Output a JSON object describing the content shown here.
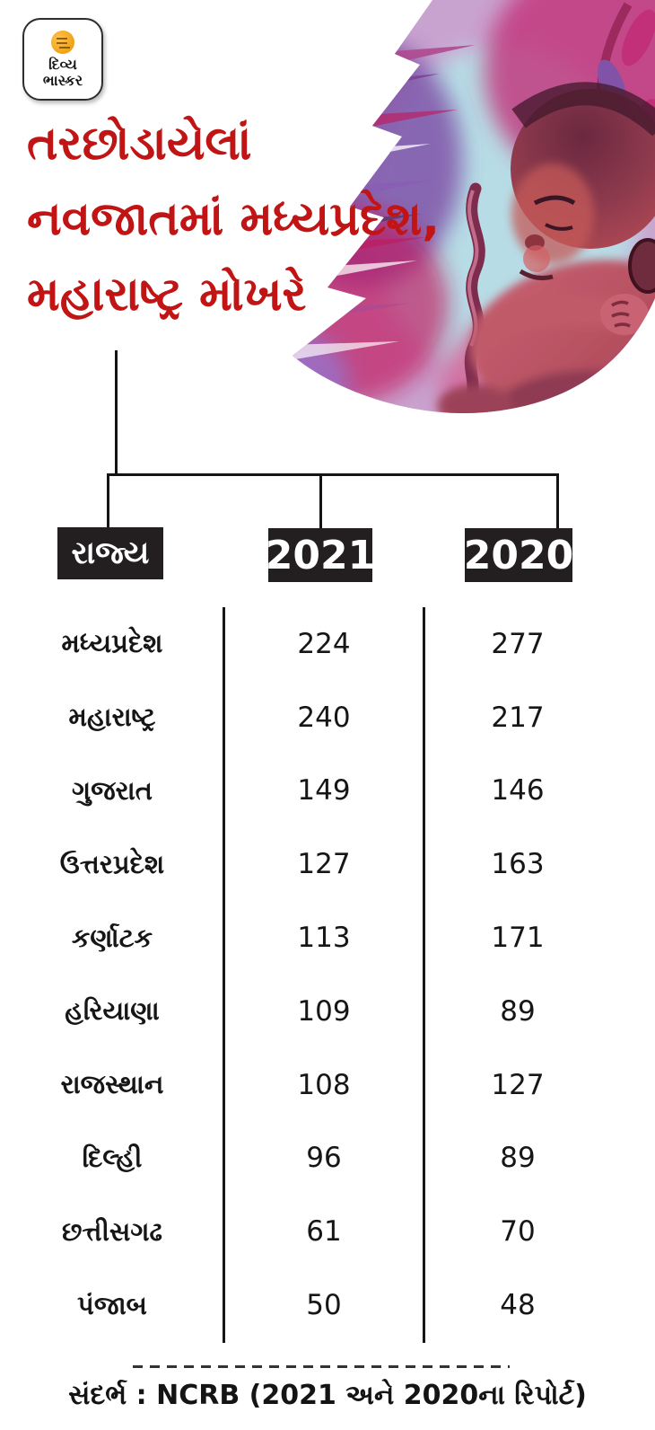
{
  "logo": {
    "line1": "દિવ્ય",
    "line2": "ભાસ્કર"
  },
  "title": {
    "line1": "તરછોડાયેલાં",
    "line2_bold": "નવજાતમાં",
    "line2_rest": " મધ્યપ્રદેશ,",
    "line3": "મહારાષ્ટ્ર મોખરે"
  },
  "colors": {
    "accent_red": "#c11414",
    "header_box_bg": "#231f20",
    "line_black": "#141414"
  },
  "table": {
    "headers": {
      "state": "રાજ્ય",
      "col2021": "2021",
      "col2020": "2020"
    },
    "rows": [
      {
        "state": "મધ્યપ્રદેશ",
        "v2021": "224",
        "v2020": "277"
      },
      {
        "state": "મહારાષ્ટ્ર",
        "v2021": "240",
        "v2020": "217"
      },
      {
        "state": "ગુજરાત",
        "v2021": "149",
        "v2020": "146"
      },
      {
        "state": "ઉત્તરપ્રદેશ",
        "v2021": "127",
        "v2020": "163"
      },
      {
        "state": "કર્ણાટક",
        "v2021": "113",
        "v2020": "171"
      },
      {
        "state": "હરિયાણા",
        "v2021": "109",
        "v2020": "89"
      },
      {
        "state": "રાજસ્થાન",
        "v2021": "108",
        "v2020": "127"
      },
      {
        "state": "દિલ્હી",
        "v2021": "96",
        "v2020": "89"
      },
      {
        "state": "છત્તીસગઢ",
        "v2021": "61",
        "v2020": "70"
      },
      {
        "state": "પંજાબ",
        "v2021": "50",
        "v2020": "48"
      }
    ]
  },
  "footer": {
    "source": "સંદર્ભ : NCRB (2021 અને 2020ના રિપોર્ટ)"
  },
  "chart_data": {
    "type": "table",
    "title": "તરછોડાયેલાં નવજાતમાં મધ્યપ્રદેશ, મહારાષ્ટ્ર મોખરે",
    "categories": [
      "મધ્યપ્રદેશ",
      "મહારાષ્ટ્ર",
      "ગુજરાત",
      "ઉત્તરપ્રદેશ",
      "કર્ણાટક",
      "હરિયાણા",
      "રાજસ્થાન",
      "દિલ્હી",
      "છત્તીસગઢ",
      "પંજાબ"
    ],
    "series": [
      {
        "name": "2021",
        "values": [
          224,
          240,
          149,
          127,
          113,
          109,
          108,
          96,
          61,
          50
        ]
      },
      {
        "name": "2020",
        "values": [
          277,
          217,
          146,
          163,
          171,
          89,
          127,
          89,
          70,
          48
        ]
      }
    ],
    "source": "સંદર્ભ : NCRB (2021 અને 2020ના રિપોર્ટ)"
  }
}
